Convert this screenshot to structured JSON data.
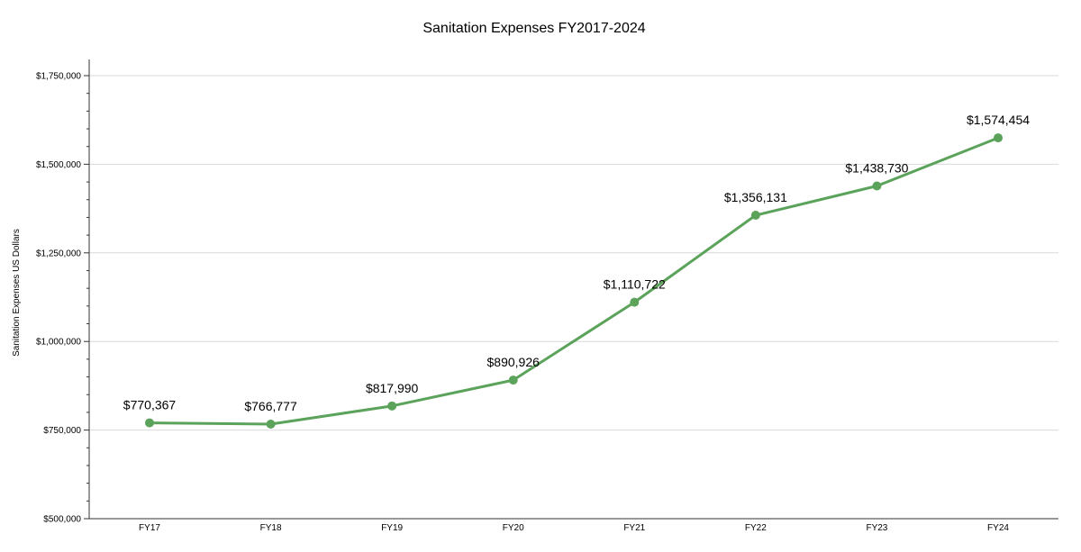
{
  "chart_data": {
    "type": "line",
    "title": "Sanitation Expenses FY2017-2024",
    "xlabel": "",
    "ylabel": "Sanitation Expenses US Dollars",
    "categories": [
      "FY17",
      "FY18",
      "FY19",
      "FY20",
      "FY21",
      "FY22",
      "FY23",
      "FY24"
    ],
    "series": [
      {
        "values": [
          770367,
          766777,
          817990,
          890926,
          1110722,
          1356131,
          1438730,
          1574454
        ],
        "labels": [
          "$770,367",
          "$766,777",
          "$817,990",
          "$890,926",
          "$1,110,722",
          "$1,356,131",
          "$1,438,730",
          "$1,574,454"
        ]
      }
    ],
    "ylim": [
      500000,
      1750000
    ],
    "yticks": [
      500000,
      750000,
      1000000,
      1250000,
      1500000,
      1750000
    ],
    "ytick_labels": [
      "$500,000",
      "$750,000",
      "$1,000,000",
      "$1,250,000",
      "$1,500,000",
      "$1,750,000"
    ],
    "grid": true,
    "legend": "none",
    "line_color": "#5ba35b"
  }
}
